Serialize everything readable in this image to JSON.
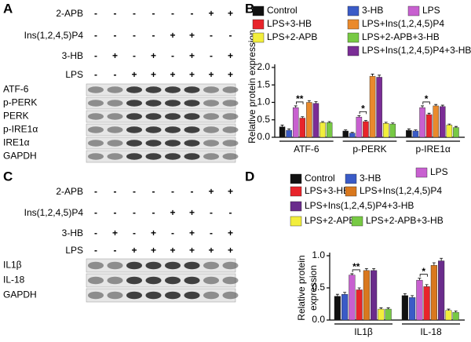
{
  "blots": [
    {
      "panel": "A",
      "treatments": [
        {
          "label": "2-APB",
          "lanes": [
            "-",
            "-",
            "-",
            "-",
            "-",
            "-",
            "+",
            "+"
          ]
        },
        {
          "label": "Ins(1,2,4,5)P4",
          "lanes": [
            "-",
            "-",
            "-",
            "-",
            "+",
            "+",
            "-",
            "-"
          ]
        },
        {
          "label": "3-HB",
          "lanes": [
            "-",
            "+",
            "-",
            "+",
            "-",
            "+",
            "-",
            "+"
          ]
        },
        {
          "label": "LPS",
          "lanes": [
            "-",
            "-",
            "+",
            "+",
            "+",
            "+",
            "+",
            "+"
          ]
        }
      ],
      "proteins": [
        "ATF-6",
        "p-PERK",
        "PERK",
        "p-IRE1α",
        "IRE1α",
        "GAPDH"
      ]
    },
    {
      "panel": "C",
      "treatments": [
        {
          "label": "2-APB",
          "lanes": [
            "-",
            "-",
            "-",
            "-",
            "-",
            "-",
            "+",
            "+"
          ]
        },
        {
          "label": "Ins(1,2,4,5)P4",
          "lanes": [
            "-",
            "-",
            "-",
            "-",
            "+",
            "+",
            "-",
            "-"
          ]
        },
        {
          "label": "3-HB",
          "lanes": [
            "-",
            "+",
            "-",
            "+",
            "-",
            "+",
            "-",
            "+"
          ]
        },
        {
          "label": "LPS",
          "lanes": [
            "-",
            "-",
            "+",
            "+",
            "+",
            "+",
            "+",
            "+"
          ]
        }
      ],
      "proteins": [
        "IL1β",
        "IL-18",
        "GAPDH"
      ]
    }
  ],
  "chart_data": [
    {
      "type": "bar",
      "panel": "B",
      "y_label": "Relative protein expression",
      "categories": [
        "ATF-6",
        "p-PERK",
        "p-IRE1α"
      ],
      "ylim": [
        0,
        2
      ],
      "yticks": [
        {
          "value": 0,
          "label": "0.0"
        },
        0.5,
        {
          "value": 1,
          "label": "1.0"
        },
        1.5,
        {
          "value": 2,
          "label": "2.0"
        }
      ],
      "annotations": [
        "**",
        "*",
        "*"
      ],
      "series": [
        {
          "name": "Control",
          "color": "#111111",
          "values": [
            0.3,
            0.18,
            0.2
          ],
          "errors": [
            0.05,
            0.03,
            0.04
          ]
        },
        {
          "name": "3-HB",
          "color": "#3a5bc7",
          "values": [
            0.2,
            0.12,
            0.18
          ],
          "errors": [
            0.04,
            0.02,
            0.03
          ]
        },
        {
          "name": "LPS",
          "color": "#c860d0",
          "values": [
            0.85,
            0.58,
            0.85
          ],
          "errors": [
            0.05,
            0.04,
            0.05
          ]
        },
        {
          "name": "LPS+3-HB",
          "color": "#e8242b",
          "values": [
            0.55,
            0.45,
            0.65
          ],
          "errors": [
            0.04,
            0.03,
            0.04
          ]
        },
        {
          "name": "LPS+Ins(1,2,4,5)P4",
          "color": "#ea8a2c",
          "values": [
            1.0,
            1.75,
            0.9
          ],
          "errors": [
            0.05,
            0.06,
            0.04
          ]
        },
        {
          "name": "LPS+Ins(1,2,4,5)P4+3-HB",
          "color": "#7b2d96",
          "values": [
            0.97,
            1.72,
            0.88
          ],
          "errors": [
            0.05,
            0.06,
            0.04
          ]
        },
        {
          "name": "LPS+2-APB",
          "color": "#f2ee3c",
          "values": [
            0.42,
            0.4,
            0.35
          ],
          "errors": [
            0.03,
            0.03,
            0.03
          ]
        },
        {
          "name": "LPS+2-APB+3-HB",
          "color": "#77c944",
          "values": [
            0.42,
            0.38,
            0.28
          ],
          "errors": [
            0.03,
            0.03,
            0.03
          ]
        }
      ]
    },
    {
      "type": "bar",
      "panel": "D",
      "y_label": [
        "Relative protein",
        "expression"
      ],
      "categories": [
        "IL1β",
        "IL-18"
      ],
      "ylim": [
        0,
        1
      ],
      "yticks": [
        {
          "value": 0,
          "label": "0.0"
        },
        0.5,
        {
          "value": 1,
          "label": "1.0"
        }
      ],
      "annotations": [
        "**",
        "*"
      ],
      "series": [
        {
          "name": "Control",
          "color": "#111111",
          "values": [
            0.37,
            0.38
          ],
          "errors": [
            0.03,
            0.03
          ]
        },
        {
          "name": "3-HB",
          "color": "#3a5bc7",
          "values": [
            0.4,
            0.35
          ],
          "errors": [
            0.03,
            0.03
          ]
        },
        {
          "name": "LPS",
          "color": "#c860d0",
          "values": [
            0.7,
            0.62
          ],
          "errors": [
            0.02,
            0.03
          ]
        },
        {
          "name": "LPS+3-HB",
          "color": "#e8242b",
          "values": [
            0.47,
            0.52
          ],
          "errors": [
            0.03,
            0.03
          ]
        },
        {
          "name": "LPS+Ins(1,2,4,5)P4",
          "color": "#d9781e",
          "values": [
            0.77,
            0.85
          ],
          "errors": [
            0.03,
            0.04
          ]
        },
        {
          "name": "LPS+Ins(1,2,4,5)P4+3-HB",
          "color": "#6a2c8c",
          "values": [
            0.77,
            0.92
          ],
          "errors": [
            0.03,
            0.04
          ]
        },
        {
          "name": "LPS+2-APB",
          "color": "#f2ee3c",
          "values": [
            0.17,
            0.15
          ],
          "errors": [
            0.02,
            0.02
          ]
        },
        {
          "name": "LPS+2-APB+3-HB",
          "color": "#77c944",
          "values": [
            0.17,
            0.12
          ],
          "errors": [
            0.02,
            0.02
          ]
        }
      ]
    }
  ]
}
